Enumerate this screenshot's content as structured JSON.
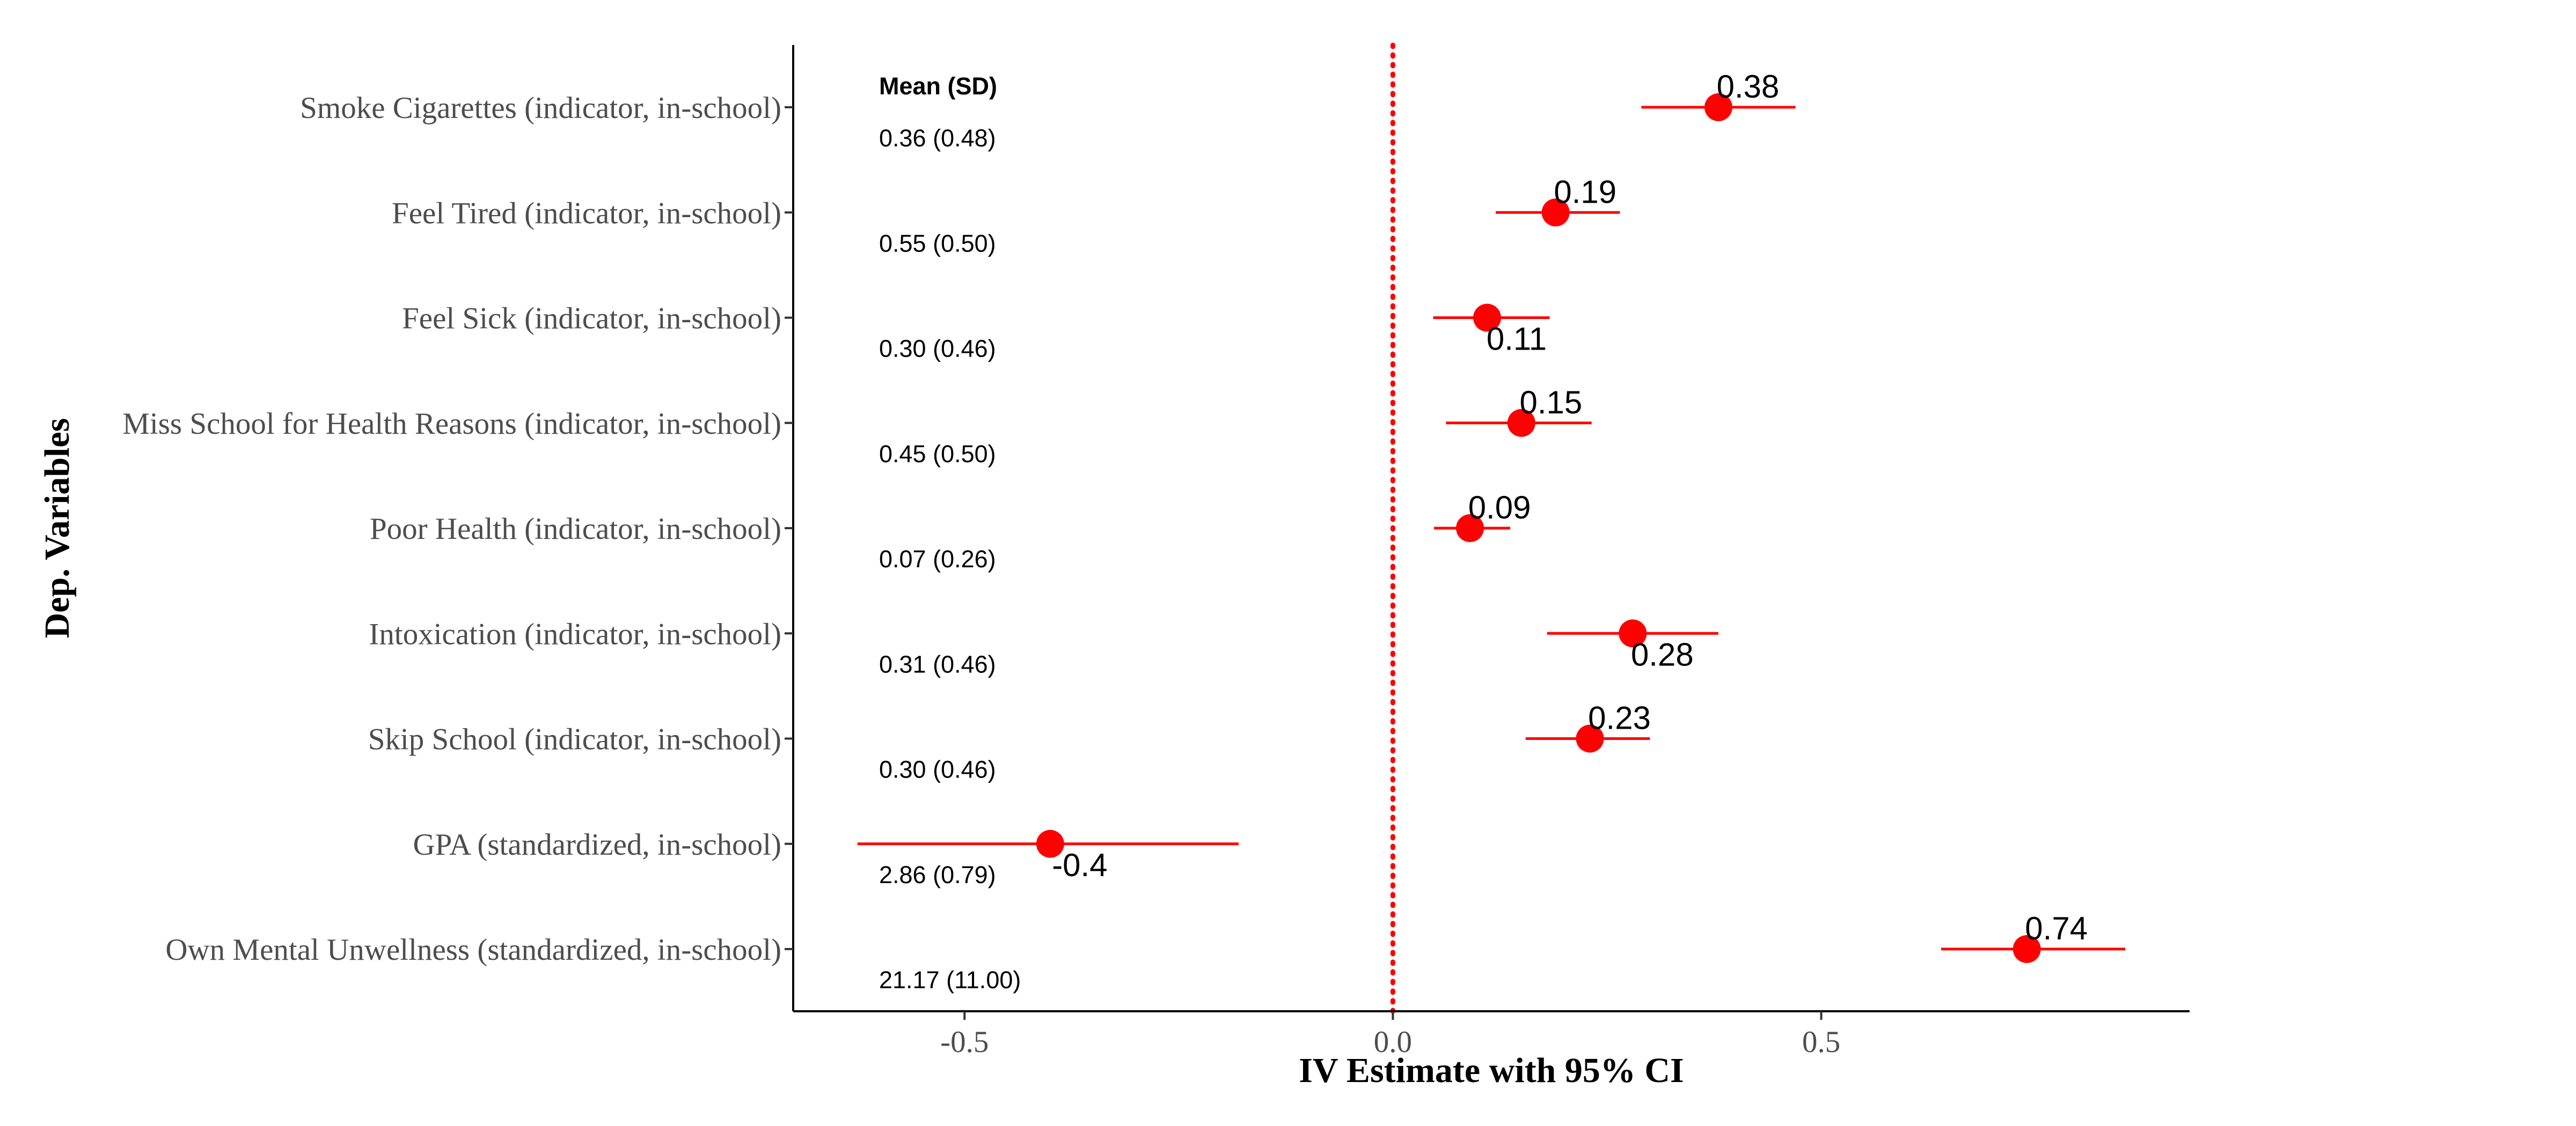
{
  "chart_data": {
    "type": "scatter",
    "subtype": "coefficient-plot",
    "xlabel": "IV Estimate with 95% CI",
    "ylabel": "Dep. Variables",
    "xlim": [
      -0.7,
      0.93
    ],
    "x_ticks": [
      -0.5,
      0.0,
      0.5
    ],
    "x_tick_labels": [
      "-0.5",
      "0.0",
      "0.5"
    ],
    "reference_line": {
      "x": 0,
      "style": "dotted",
      "color": "#ff0000"
    },
    "mean_header": "Mean (SD)",
    "point_color": "#ff0000",
    "ci_color": "#ff0000",
    "grid": false,
    "legend": "none",
    "rows": [
      {
        "category": "Smoke Cigarettes (indicator, in-school)",
        "estimate": 0.38,
        "ci_low": 0.29,
        "ci_high": 0.47,
        "label": "0.38",
        "label_position": "above",
        "mean_sd": "0.36 (0.48)"
      },
      {
        "category": "Feel Tired (indicator, in-school)",
        "estimate": 0.19,
        "ci_low": 0.12,
        "ci_high": 0.265,
        "label": "0.19",
        "label_position": "above",
        "mean_sd": "0.55 (0.50)"
      },
      {
        "category": "Feel Sick (indicator, in-school)",
        "estimate": 0.11,
        "ci_low": 0.047,
        "ci_high": 0.183,
        "label": "0.11",
        "label_position": "below",
        "mean_sd": "0.30 (0.46)"
      },
      {
        "category": "Miss School for Health Reasons (indicator, in-school)",
        "estimate": 0.15,
        "ci_low": 0.062,
        "ci_high": 0.232,
        "label": "0.15",
        "label_position": "above",
        "mean_sd": "0.45 (0.50)"
      },
      {
        "category": "Poor Health (indicator, in-school)",
        "estimate": 0.09,
        "ci_low": 0.048,
        "ci_high": 0.137,
        "label": "0.09",
        "label_position": "above",
        "mean_sd": "0.07 (0.26)"
      },
      {
        "category": "Intoxication (indicator, in-school)",
        "estimate": 0.28,
        "ci_low": 0.18,
        "ci_high": 0.38,
        "label": "0.28",
        "label_position": "below",
        "mean_sd": "0.31 (0.46)"
      },
      {
        "category": "Skip School (indicator, in-school)",
        "estimate": 0.23,
        "ci_low": 0.155,
        "ci_high": 0.3,
        "label": "0.23",
        "label_position": "above",
        "mean_sd": "0.30 (0.46)"
      },
      {
        "category": "GPA (standardized, in-school)",
        "estimate": -0.4,
        "ci_low": -0.625,
        "ci_high": -0.18,
        "label": "-0.4",
        "label_position": "below",
        "mean_sd": "2.86 (0.79)"
      },
      {
        "category": "Own Mental Unwellness (standardized, in-school)",
        "estimate": 0.74,
        "ci_low": 0.64,
        "ci_high": 0.855,
        "label": "0.74",
        "label_position": "above",
        "mean_sd": "21.17 (11.00)"
      }
    ]
  }
}
